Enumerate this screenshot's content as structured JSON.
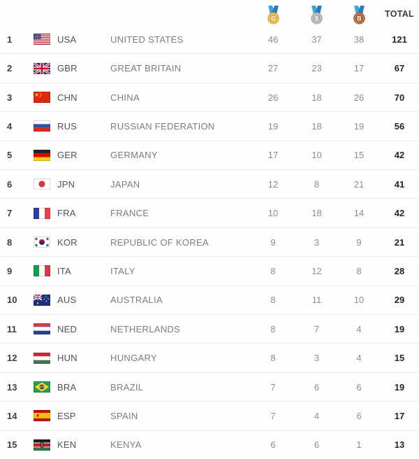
{
  "header": {
    "total_label": "TOTAL",
    "medal_columns": [
      {
        "key": "gold",
        "icon": "gold-medal-icon",
        "letter": "G",
        "color": "#E7A93C"
      },
      {
        "key": "silver",
        "icon": "silver-medal-icon",
        "letter": "S",
        "color": "#ACACAC"
      },
      {
        "key": "bronze",
        "icon": "bronze-medal-icon",
        "letter": "B",
        "color": "#A4582C"
      }
    ]
  },
  "colors": {
    "ribbon_light": "#3FA2DC",
    "ribbon_dark": "#2D7BB4",
    "row_divider": "#e9e9e9",
    "count_text": "#8d8d8d",
    "total_text": "#252525"
  },
  "rows": [
    {
      "rank": "1",
      "flag": "usa",
      "code": "USA",
      "country": "UNITED STATES",
      "gold": "46",
      "silver": "37",
      "bronze": "38",
      "total": "121"
    },
    {
      "rank": "2",
      "flag": "gbr",
      "code": "GBR",
      "country": "GREAT BRITAIN",
      "gold": "27",
      "silver": "23",
      "bronze": "17",
      "total": "67"
    },
    {
      "rank": "3",
      "flag": "chn",
      "code": "CHN",
      "country": "CHINA",
      "gold": "26",
      "silver": "18",
      "bronze": "26",
      "total": "70"
    },
    {
      "rank": "4",
      "flag": "rus",
      "code": "RUS",
      "country": "RUSSIAN FEDERATION",
      "gold": "19",
      "silver": "18",
      "bronze": "19",
      "total": "56"
    },
    {
      "rank": "5",
      "flag": "ger",
      "code": "GER",
      "country": "GERMANY",
      "gold": "17",
      "silver": "10",
      "bronze": "15",
      "total": "42"
    },
    {
      "rank": "6",
      "flag": "jpn",
      "code": "JPN",
      "country": "JAPAN",
      "gold": "12",
      "silver": "8",
      "bronze": "21",
      "total": "41"
    },
    {
      "rank": "7",
      "flag": "fra",
      "code": "FRA",
      "country": "FRANCE",
      "gold": "10",
      "silver": "18",
      "bronze": "14",
      "total": "42"
    },
    {
      "rank": "8",
      "flag": "kor",
      "code": "KOR",
      "country": "REPUBLIC OF KOREA",
      "gold": "9",
      "silver": "3",
      "bronze": "9",
      "total": "21"
    },
    {
      "rank": "9",
      "flag": "ita",
      "code": "ITA",
      "country": "ITALY",
      "gold": "8",
      "silver": "12",
      "bronze": "8",
      "total": "28"
    },
    {
      "rank": "10",
      "flag": "aus",
      "code": "AUS",
      "country": "AUSTRALIA",
      "gold": "8",
      "silver": "11",
      "bronze": "10",
      "total": "29"
    },
    {
      "rank": "11",
      "flag": "ned",
      "code": "NED",
      "country": "NETHERLANDS",
      "gold": "8",
      "silver": "7",
      "bronze": "4",
      "total": "19"
    },
    {
      "rank": "12",
      "flag": "hun",
      "code": "HUN",
      "country": "HUNGARY",
      "gold": "8",
      "silver": "3",
      "bronze": "4",
      "total": "15"
    },
    {
      "rank": "13",
      "flag": "bra",
      "code": "BRA",
      "country": "BRAZIL",
      "gold": "7",
      "silver": "6",
      "bronze": "6",
      "total": "19"
    },
    {
      "rank": "14",
      "flag": "esp",
      "code": "ESP",
      "country": "SPAIN",
      "gold": "7",
      "silver": "4",
      "bronze": "6",
      "total": "17"
    },
    {
      "rank": "15",
      "flag": "ken",
      "code": "KEN",
      "country": "KENYA",
      "gold": "6",
      "silver": "6",
      "bronze": "1",
      "total": "13"
    }
  ]
}
